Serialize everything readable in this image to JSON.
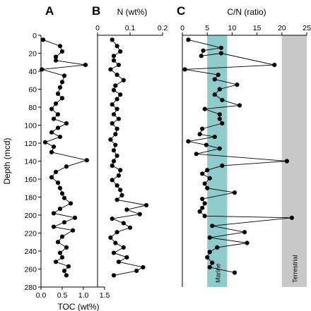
{
  "chart_data": [
    {
      "type": "line",
      "panel_letter": "A",
      "xlabel": "TOC (wt%)",
      "xaxis_position": "bottom",
      "ylabel": "Depth (mcd)",
      "xlim": [
        0.0,
        1.5
      ],
      "xticks": [
        0.0,
        0.5,
        1.0,
        1.5
      ],
      "xtick_labels": [
        "0.0",
        "0.5",
        "1.0",
        "1.5"
      ],
      "ylim": [
        0,
        280
      ],
      "yticks": [
        0,
        20,
        40,
        60,
        80,
        100,
        120,
        140,
        160,
        180,
        200,
        220,
        240,
        260,
        280
      ],
      "ytick_labels": [
        "0",
        "20",
        "40",
        "60",
        "80",
        "100",
        "120",
        "140",
        "160",
        "180",
        "200",
        "220",
        "240",
        "260",
        "280"
      ],
      "series": [
        {
          "points": [
            {
              "x": 0.05,
              "y": 5
            },
            {
              "x": 0.45,
              "y": 12
            },
            {
              "x": 0.5,
              "y": 18
            },
            {
              "x": 0.35,
              "y": 24
            },
            {
              "x": 0.35,
              "y": 28
            },
            {
              "x": 1.05,
              "y": 33
            },
            {
              "x": 0.02,
              "y": 38
            },
            {
              "x": 0.55,
              "y": 45
            },
            {
              "x": 0.5,
              "y": 52
            },
            {
              "x": 0.45,
              "y": 58
            },
            {
              "x": 0.4,
              "y": 65
            },
            {
              "x": 0.5,
              "y": 70
            },
            {
              "x": 0.35,
              "y": 76
            },
            {
              "x": 0.25,
              "y": 82
            },
            {
              "x": 0.4,
              "y": 88
            },
            {
              "x": 0.3,
              "y": 93
            },
            {
              "x": 0.6,
              "y": 98
            },
            {
              "x": 0.4,
              "y": 103
            },
            {
              "x": 0.25,
              "y": 108
            },
            {
              "x": 0.45,
              "y": 113
            },
            {
              "x": 0.1,
              "y": 119
            },
            {
              "x": 0.3,
              "y": 124
            },
            {
              "x": 0.25,
              "y": 130
            },
            {
              "x": 1.08,
              "y": 139
            },
            {
              "x": 0.6,
              "y": 146
            },
            {
              "x": 0.35,
              "y": 152
            },
            {
              "x": 0.25,
              "y": 158
            },
            {
              "x": 0.4,
              "y": 164
            },
            {
              "x": 0.45,
              "y": 170
            },
            {
              "x": 0.5,
              "y": 176
            },
            {
              "x": 0.55,
              "y": 181
            },
            {
              "x": 0.7,
              "y": 187
            },
            {
              "x": 0.45,
              "y": 193
            },
            {
              "x": 0.3,
              "y": 198
            },
            {
              "x": 0.8,
              "y": 203
            },
            {
              "x": 0.55,
              "y": 208
            },
            {
              "x": 0.3,
              "y": 213
            },
            {
              "x": 0.75,
              "y": 217
            },
            {
              "x": 0.5,
              "y": 224
            },
            {
              "x": 0.4,
              "y": 230
            },
            {
              "x": 0.6,
              "y": 236
            },
            {
              "x": 0.45,
              "y": 242
            },
            {
              "x": 0.5,
              "y": 247
            },
            {
              "x": 0.35,
              "y": 252
            },
            {
              "x": 0.65,
              "y": 257
            },
            {
              "x": 0.55,
              "y": 262
            },
            {
              "x": 0.6,
              "y": 267
            }
          ]
        }
      ]
    },
    {
      "type": "line",
      "panel_letter": "B",
      "xlabel": "N (wt%)",
      "xaxis_position": "top",
      "xlim": [
        0,
        0.2
      ],
      "xticks": [
        0,
        0.1,
        0.2
      ],
      "xtick_labels": [
        "0",
        "0.1",
        "0.2"
      ],
      "ylim": [
        0,
        280
      ],
      "series": [
        {
          "points": [
            {
              "x": 0.045,
              "y": 5
            },
            {
              "x": 0.06,
              "y": 12
            },
            {
              "x": 0.07,
              "y": 18
            },
            {
              "x": 0.05,
              "y": 23
            },
            {
              "x": 0.05,
              "y": 28
            },
            {
              "x": 0.065,
              "y": 33
            },
            {
              "x": 0.04,
              "y": 38
            },
            {
              "x": 0.06,
              "y": 44
            },
            {
              "x": 0.08,
              "y": 50
            },
            {
              "x": 0.055,
              "y": 56
            },
            {
              "x": 0.05,
              "y": 61
            },
            {
              "x": 0.07,
              "y": 66
            },
            {
              "x": 0.06,
              "y": 71
            },
            {
              "x": 0.045,
              "y": 77
            },
            {
              "x": 0.06,
              "y": 82
            },
            {
              "x": 0.05,
              "y": 88
            },
            {
              "x": 0.065,
              "y": 93
            },
            {
              "x": 0.045,
              "y": 98
            },
            {
              "x": 0.06,
              "y": 104
            },
            {
              "x": 0.055,
              "y": 110
            },
            {
              "x": 0.04,
              "y": 116
            },
            {
              "x": 0.055,
              "y": 122
            },
            {
              "x": 0.05,
              "y": 128
            },
            {
              "x": 0.06,
              "y": 134
            },
            {
              "x": 0.05,
              "y": 140
            },
            {
              "x": 0.045,
              "y": 145
            },
            {
              "x": 0.07,
              "y": 150
            },
            {
              "x": 0.065,
              "y": 156
            },
            {
              "x": 0.045,
              "y": 161
            },
            {
              "x": 0.06,
              "y": 167
            },
            {
              "x": 0.07,
              "y": 172
            },
            {
              "x": 0.075,
              "y": 178
            },
            {
              "x": 0.06,
              "y": 183
            },
            {
              "x": 0.15,
              "y": 189
            },
            {
              "x": 0.09,
              "y": 194
            },
            {
              "x": 0.13,
              "y": 199
            },
            {
              "x": 0.045,
              "y": 204
            },
            {
              "x": 0.08,
              "y": 209
            },
            {
              "x": 0.1,
              "y": 214
            },
            {
              "x": 0.06,
              "y": 219
            },
            {
              "x": 0.04,
              "y": 225
            },
            {
              "x": 0.055,
              "y": 231
            },
            {
              "x": 0.08,
              "y": 236
            },
            {
              "x": 0.05,
              "y": 242
            },
            {
              "x": 0.09,
              "y": 247
            },
            {
              "x": 0.065,
              "y": 252
            },
            {
              "x": 0.14,
              "y": 258
            },
            {
              "x": 0.12,
              "y": 262
            },
            {
              "x": 0.05,
              "y": 267
            }
          ]
        }
      ]
    },
    {
      "type": "line",
      "panel_letter": "C",
      "xlabel": "C/N (ratio)",
      "xaxis_position": "top",
      "xlim": [
        0,
        25
      ],
      "xticks": [
        0,
        5,
        10,
        15,
        20,
        25
      ],
      "xtick_labels": [
        "0",
        "5",
        "10",
        "15",
        "20",
        "25"
      ],
      "ylim": [
        0,
        280
      ],
      "bands": [
        {
          "label": "Marine",
          "xmin": 5,
          "xmax": 9,
          "color": "#8ecccc"
        },
        {
          "label": "Terrestrial",
          "xmin": 20,
          "xmax": 25,
          "color": "#c8c8c8"
        }
      ],
      "series": [
        {
          "points": [
            {
              "x": 1.2,
              "y": 5
            },
            {
              "x": 7.8,
              "y": 14
            },
            {
              "x": 4.2,
              "y": 17
            },
            {
              "x": 3.8,
              "y": 23
            },
            {
              "x": 7.8,
              "y": 20
            },
            {
              "x": 18.5,
              "y": 33
            },
            {
              "x": 0.5,
              "y": 38
            },
            {
              "x": 7.2,
              "y": 44
            },
            {
              "x": 6.5,
              "y": 49
            },
            {
              "x": 11,
              "y": 55
            },
            {
              "x": 7.5,
              "y": 60
            },
            {
              "x": 6.5,
              "y": 66
            },
            {
              "x": 8,
              "y": 72
            },
            {
              "x": 11.5,
              "y": 78
            },
            {
              "x": 4.5,
              "y": 82
            },
            {
              "x": 7.5,
              "y": 88
            },
            {
              "x": 7.5,
              "y": 93
            },
            {
              "x": 8,
              "y": 98
            },
            {
              "x": 4,
              "y": 104
            },
            {
              "x": 3.5,
              "y": 110
            },
            {
              "x": 6.5,
              "y": 113
            },
            {
              "x": 1.2,
              "y": 118
            },
            {
              "x": 4.8,
              "y": 122
            },
            {
              "x": 7.5,
              "y": 126
            },
            {
              "x": 2.8,
              "y": 132
            },
            {
              "x": 21,
              "y": 140
            },
            {
              "x": 8,
              "y": 145
            },
            {
              "x": 5,
              "y": 150
            },
            {
              "x": 4,
              "y": 154
            },
            {
              "x": 5.5,
              "y": 159
            },
            {
              "x": 4.5,
              "y": 165
            },
            {
              "x": 5,
              "y": 170
            },
            {
              "x": 10.5,
              "y": 175
            },
            {
              "x": 4,
              "y": 182
            },
            {
              "x": 4.5,
              "y": 187
            },
            {
              "x": 4,
              "y": 192
            },
            {
              "x": 3.5,
              "y": 196
            },
            {
              "x": 4.5,
              "y": 201
            },
            {
              "x": 22,
              "y": 203
            },
            {
              "x": 6,
              "y": 212
            },
            {
              "x": 12.5,
              "y": 219
            },
            {
              "x": 5.5,
              "y": 225
            },
            {
              "x": 13,
              "y": 231
            },
            {
              "x": 7,
              "y": 236
            },
            {
              "x": 5.5,
              "y": 241
            },
            {
              "x": 5,
              "y": 247
            },
            {
              "x": 6,
              "y": 253
            },
            {
              "x": 5.5,
              "y": 258
            },
            {
              "x": 10.5,
              "y": 264
            }
          ]
        }
      ]
    }
  ]
}
